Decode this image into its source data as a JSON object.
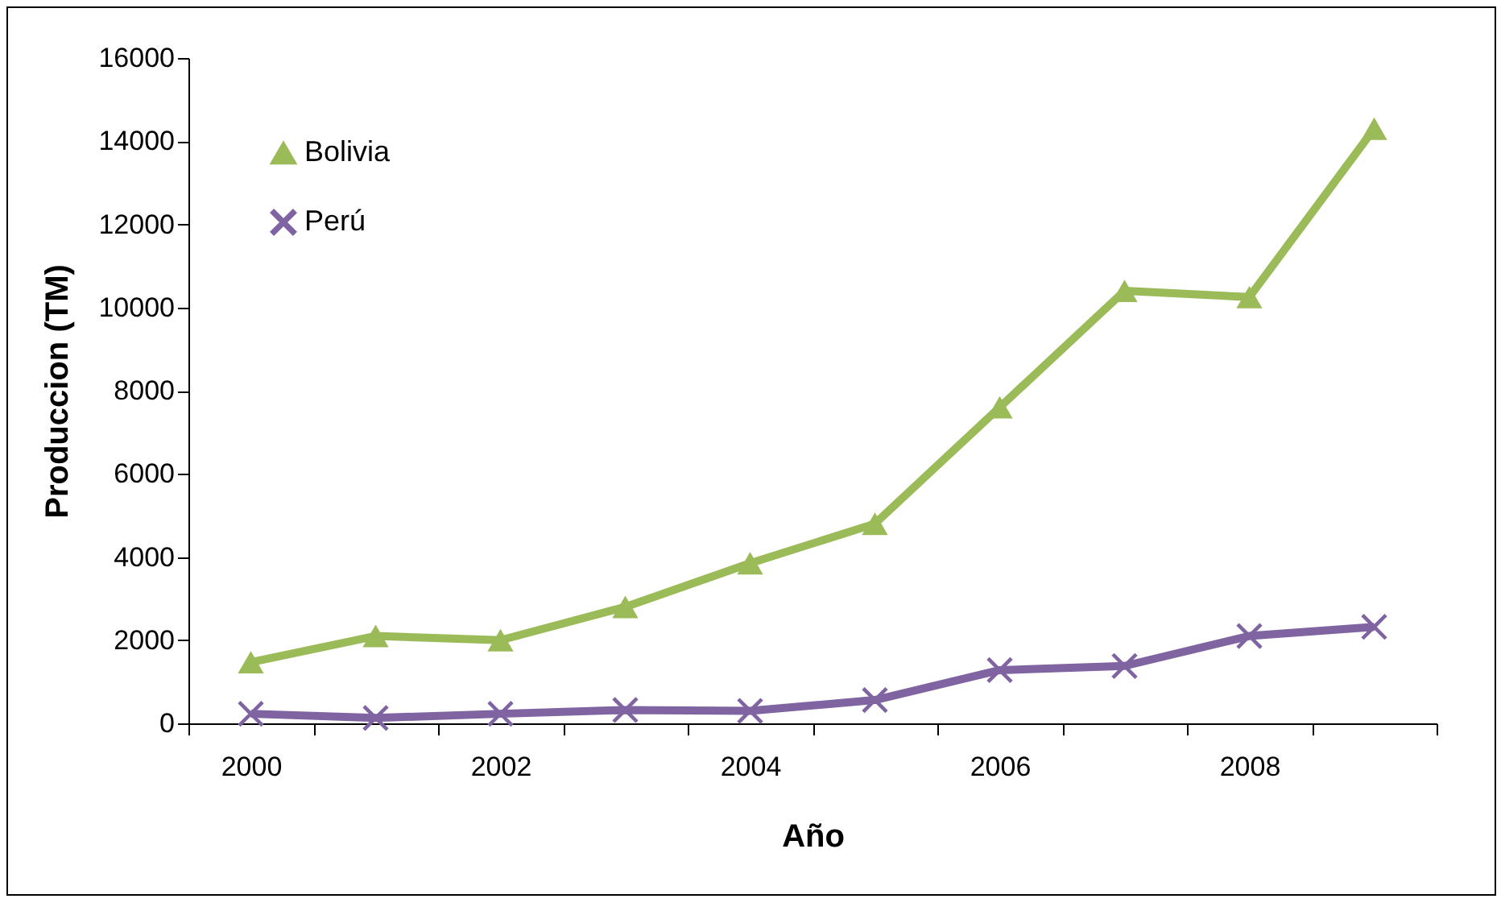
{
  "chart_data": {
    "type": "line",
    "xlabel": "Año",
    "ylabel": "Produccion (TM)",
    "categories": [
      "2000",
      null,
      "2002",
      null,
      "2004",
      null,
      "2006",
      null,
      "2008",
      null
    ],
    "series": [
      {
        "name": "Bolivia",
        "color": "#9bbb59",
        "marker": "triangle",
        "values": [
          1470,
          2100,
          2000,
          2800,
          3850,
          4800,
          7600,
          10400,
          10250,
          14300
        ]
      },
      {
        "name": "Perú",
        "color": "#8064a2",
        "marker": "cross",
        "values": [
          230,
          130,
          230,
          320,
          300,
          560,
          1280,
          1380,
          2100,
          2320
        ]
      }
    ],
    "ylim": [
      0,
      16000
    ],
    "yticks": [
      0,
      2000,
      4000,
      6000,
      8000,
      10000,
      12000,
      14000,
      16000
    ],
    "grid": false,
    "legend": "top left"
  }
}
